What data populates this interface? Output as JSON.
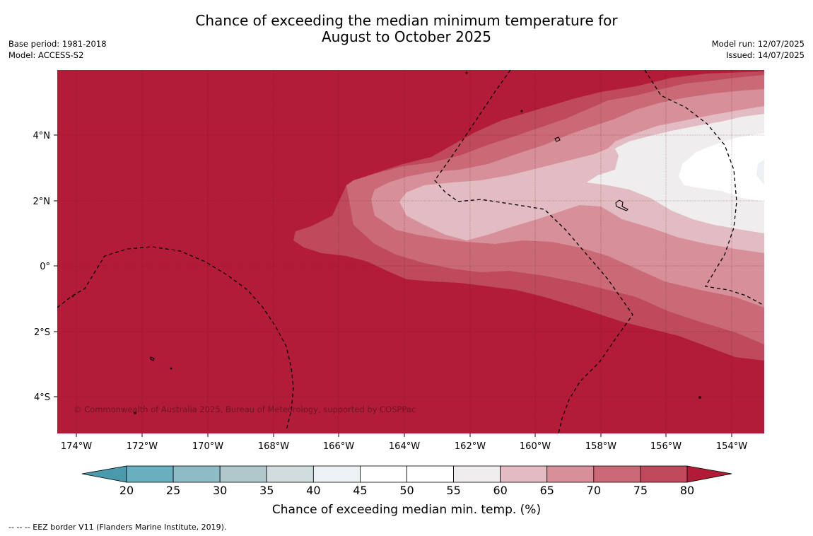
{
  "title": {
    "line1": "Chance of exceeding the median minimum temperature for",
    "line2": "August to October 2025"
  },
  "meta_left": {
    "base_period": "Base period: 1981-2018",
    "model": "Model: ACCESS-S2"
  },
  "meta_right": {
    "model_run": "Model run: 12/07/2025",
    "issued": "Issued: 14/07/2025"
  },
  "map": {
    "lon_labels": [
      "174°W",
      "172°W",
      "170°W",
      "168°W",
      "166°W",
      "164°W",
      "162°W",
      "160°W",
      "158°W",
      "156°W",
      "154°W"
    ],
    "lat_labels": [
      "4°N",
      "2°N",
      "0°",
      "2°S",
      "4°S"
    ],
    "copyright": "© Commonwealth of Australia 2025, Bureau of Meteorology, supported by COSPPac",
    "background_color": "#b31c38"
  },
  "colorbar": {
    "ticks": [
      "20",
      "25",
      "30",
      "35",
      "40",
      "45",
      "50",
      "55",
      "60",
      "65",
      "70",
      "75",
      "80"
    ],
    "colors": [
      "#4a9aab",
      "#6aafbf",
      "#8dbcc7",
      "#aec8cc",
      "#d0dcdd",
      "#ecf2f3",
      "#ffffff",
      "#ffffff",
      "#efeded",
      "#e2bcc2",
      "#d78f99",
      "#cb6a77",
      "#be4a5b",
      "#b11b37"
    ],
    "title": "Chance of exceeding median min. temp. (%)"
  },
  "legend": {
    "eez": "--  --  -- EEZ border V11 (Flanders Marine Institute, 2019)."
  }
}
